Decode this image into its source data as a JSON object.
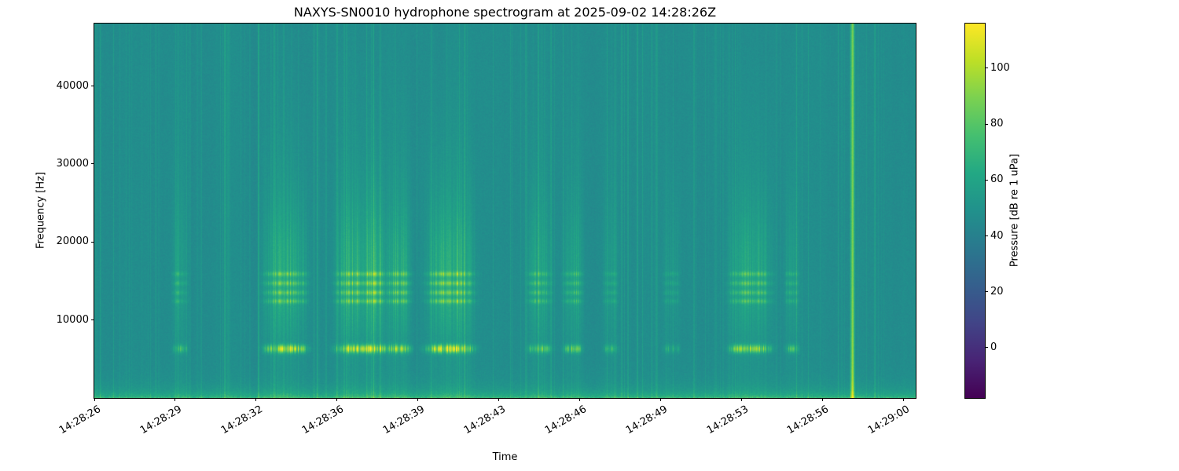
{
  "chart_data": {
    "type": "heatmap",
    "subtype": "spectrogram",
    "title": "NAXYS-SN0010 hydrophone spectrogram at 2025-09-02 14:28:26Z",
    "xlabel": "Time",
    "ylabel": "Frequency [Hz]",
    "x_tick_labels": [
      "14:28:26",
      "14:28:29",
      "14:28:32",
      "14:28:36",
      "14:28:39",
      "14:28:43",
      "14:28:46",
      "14:28:49",
      "14:28:53",
      "14:28:56",
      "14:29:00"
    ],
    "x_tick_seconds": [
      0,
      3.4,
      6.8,
      10.2,
      13.6,
      17.0,
      20.4,
      23.8,
      27.2,
      30.6,
      34.0
    ],
    "time_span_seconds": 34.5,
    "y_tick_values": [
      10000,
      20000,
      30000,
      40000
    ],
    "freq_range_hz": [
      0,
      48000
    ],
    "colorbar": {
      "label": "Pressure [dB re 1 uPa]",
      "tick_values": [
        0,
        20,
        40,
        60,
        80,
        100
      ],
      "vmin": -18,
      "vmax": 116,
      "colormap": "viridis",
      "colormap_stops": [
        "#440154",
        "#482475",
        "#414487",
        "#355f8d",
        "#2a788e",
        "#21918c",
        "#22a884",
        "#44bf70",
        "#7ad151",
        "#bddf26",
        "#fde725"
      ]
    },
    "background_level_db": 46.5,
    "noise_floor_texture_db": 4.5,
    "low_band": {
      "max_hz": 2500,
      "boost_db": 17
    },
    "tone_band_hz": 6300,
    "harmonic_bands_hz": [
      12400,
      13500,
      14700,
      15900
    ],
    "events": [
      {
        "t0": 3.3,
        "t1": 3.9,
        "amp": 0.45
      },
      {
        "t0": 7.2,
        "t1": 8.9,
        "amp": 0.9
      },
      {
        "t0": 10.2,
        "t1": 12.3,
        "amp": 1.0
      },
      {
        "t0": 12.4,
        "t1": 13.3,
        "amp": 0.8
      },
      {
        "t0": 14.0,
        "t1": 15.9,
        "amp": 1.0
      },
      {
        "t0": 18.2,
        "t1": 19.2,
        "amp": 0.6
      },
      {
        "t0": 19.7,
        "t1": 20.5,
        "amp": 0.6
      },
      {
        "t0": 21.4,
        "t1": 22.0,
        "amp": 0.35
      },
      {
        "t0": 23.9,
        "t1": 24.6,
        "amp": 0.3
      },
      {
        "t0": 26.7,
        "t1": 28.4,
        "amp": 0.8
      },
      {
        "t0": 29.0,
        "t1": 29.6,
        "amp": 0.45
      }
    ],
    "transient_line": {
      "t": 31.85,
      "amp": 1.0
    }
  }
}
